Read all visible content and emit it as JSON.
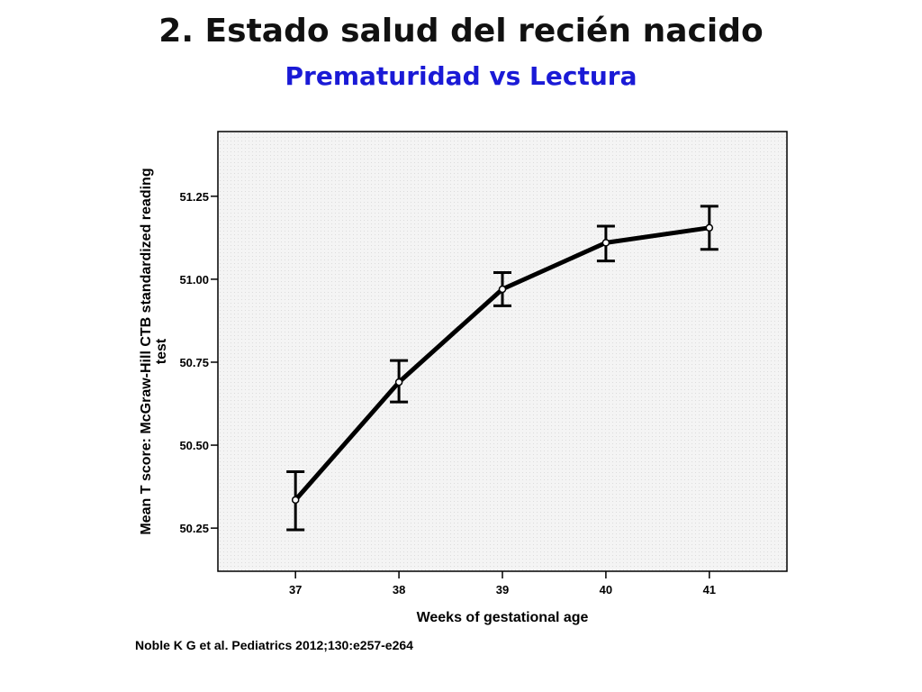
{
  "header": {
    "title": "2. Estado salud del recién nacido",
    "subtitle": "Prematuridad vs Lectura"
  },
  "citation": "Noble K G et al. Pediatrics 2012;130:e257-e264",
  "chart_data": {
    "type": "line",
    "xlabel": "Weeks of gestational age",
    "ylabel_lines": [
      "Mean T score: McGraw-Hill CTB standardized reading",
      "test"
    ],
    "x_ticks": [
      "37",
      "38",
      "39",
      "40",
      "41"
    ],
    "y_ticks": [
      "50.25",
      "50.50",
      "50.75",
      "51.00",
      "51.25"
    ],
    "y_tick_values": [
      50.25,
      50.5,
      50.75,
      51.0,
      51.25
    ],
    "x": [
      37,
      38,
      39,
      40,
      41
    ],
    "values": [
      50.335,
      50.69,
      50.97,
      51.11,
      51.155
    ],
    "error_low": [
      50.245,
      50.63,
      50.92,
      51.055,
      51.09
    ],
    "error_high": [
      50.42,
      50.755,
      51.02,
      51.16,
      51.22
    ],
    "xlim": [
      36.25,
      41.75
    ],
    "ylim": [
      50.12,
      51.445
    ],
    "grid": false,
    "plot_background": "#f3f3f3",
    "line_color": "#000000"
  }
}
